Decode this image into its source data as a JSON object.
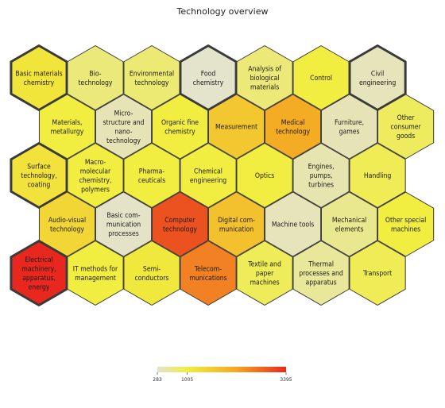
{
  "title": "Technology overview",
  "chart_data": {
    "type": "heatmap",
    "title": "Technology overview",
    "layout": "hexagonal grid",
    "color_scale": {
      "min": 283,
      "mid": 1005,
      "max": 3395,
      "tick_labels": [
        "283",
        "1005",
        "3395"
      ],
      "colors": [
        "#e3e2d2",
        "#f1ee40",
        "#f5a623",
        "#e8281e"
      ]
    },
    "cells": [
      {
        "label": [
          "Basic materials",
          "chemistry"
        ],
        "row": 0,
        "col": 0,
        "value": 1150,
        "highlight": true
      },
      {
        "label": [
          "Bio-",
          "technology"
        ],
        "row": 0,
        "col": 1,
        "value": 720,
        "highlight": false
      },
      {
        "label": [
          "Environmental",
          "technology"
        ],
        "row": 0,
        "col": 2,
        "value": 760,
        "highlight": false
      },
      {
        "label": [
          "Food",
          "chemistry"
        ],
        "row": 0,
        "col": 3,
        "value": 320,
        "highlight": true
      },
      {
        "label": [
          "Analysis of",
          "biological",
          "materials"
        ],
        "row": 0,
        "col": 4,
        "value": 730,
        "highlight": false
      },
      {
        "label": [
          "Control"
        ],
        "row": 0,
        "col": 5,
        "value": 1000,
        "highlight": false
      },
      {
        "label": [
          "Civil",
          "engineering"
        ],
        "row": 0,
        "col": 6,
        "value": 400,
        "highlight": true
      },
      {
        "label": [
          "Materials,",
          "metallurgy"
        ],
        "row": 1,
        "col": 0,
        "value": 1000,
        "highlight": false
      },
      {
        "label": [
          "Micro-",
          "structure and",
          "nano-",
          "technology"
        ],
        "row": 1,
        "col": 1,
        "value": 420,
        "highlight": false
      },
      {
        "label": [
          "Organic fine",
          "chemistry"
        ],
        "row": 1,
        "col": 2,
        "value": 1000,
        "highlight": false
      },
      {
        "label": [
          "Measurement"
        ],
        "row": 1,
        "col": 3,
        "value": 1650,
        "highlight": false
      },
      {
        "label": [
          "Medical",
          "technology"
        ],
        "row": 1,
        "col": 4,
        "value": 2100,
        "highlight": false
      },
      {
        "label": [
          "Furniture,",
          "games"
        ],
        "row": 1,
        "col": 5,
        "value": 420,
        "highlight": false
      },
      {
        "label": [
          "Other",
          "consumer",
          "goods"
        ],
        "row": 1,
        "col": 6,
        "value": 850,
        "highlight": false
      },
      {
        "label": [
          "Surface",
          "technology,",
          "coating"
        ],
        "row": 2,
        "col": 0,
        "value": 1200,
        "highlight": true
      },
      {
        "label": [
          "Macro-",
          "molecular",
          "chemistry,",
          "polymers"
        ],
        "row": 2,
        "col": 1,
        "value": 1000,
        "highlight": false
      },
      {
        "label": [
          "Pharma-",
          "ceuticals"
        ],
        "row": 2,
        "col": 2,
        "value": 1000,
        "highlight": false
      },
      {
        "label": [
          "Chemical",
          "engineering"
        ],
        "row": 2,
        "col": 3,
        "value": 1000,
        "highlight": false
      },
      {
        "label": [
          "Optics"
        ],
        "row": 2,
        "col": 4,
        "value": 1000,
        "highlight": false
      },
      {
        "label": [
          "Engines,",
          "pumps,",
          "turbines"
        ],
        "row": 2,
        "col": 5,
        "value": 450,
        "highlight": false
      },
      {
        "label": [
          "Handling"
        ],
        "row": 2,
        "col": 6,
        "value": 900,
        "highlight": false
      },
      {
        "label": [
          "Audio-visual",
          "technology"
        ],
        "row": 3,
        "col": 0,
        "value": 1400,
        "highlight": false
      },
      {
        "label": [
          "Basic com-",
          "munication",
          "processes"
        ],
        "row": 3,
        "col": 1,
        "value": 330,
        "highlight": false
      },
      {
        "label": [
          "Computer",
          "technology"
        ],
        "row": 3,
        "col": 2,
        "value": 3000,
        "highlight": false
      },
      {
        "label": [
          "Digital com-",
          "munication"
        ],
        "row": 3,
        "col": 3,
        "value": 1750,
        "highlight": false
      },
      {
        "label": [
          "Machine tools"
        ],
        "row": 3,
        "col": 4,
        "value": 400,
        "highlight": false
      },
      {
        "label": [
          "Mechanical",
          "elements"
        ],
        "row": 3,
        "col": 5,
        "value": 620,
        "highlight": false
      },
      {
        "label": [
          "Other special",
          "machines"
        ],
        "row": 3,
        "col": 6,
        "value": 1000,
        "highlight": false
      },
      {
        "label": [
          "Electrical",
          "machinery,",
          "apparatus,",
          "energy"
        ],
        "row": 4,
        "col": 0,
        "value": 3395,
        "highlight": true
      },
      {
        "label": [
          "IT methods for",
          "management"
        ],
        "row": 4,
        "col": 1,
        "value": 1000,
        "highlight": false
      },
      {
        "label": [
          "Semi-",
          "conductors"
        ],
        "row": 4,
        "col": 2,
        "value": 1100,
        "highlight": false
      },
      {
        "label": [
          "Telecom-",
          "munications"
        ],
        "row": 4,
        "col": 3,
        "value": 2550,
        "highlight": false
      },
      {
        "label": [
          "Textile and",
          "paper",
          "machines"
        ],
        "row": 4,
        "col": 4,
        "value": 880,
        "highlight": false
      },
      {
        "label": [
          "Thermal",
          "processes and",
          "apparatus"
        ],
        "row": 4,
        "col": 5,
        "value": 560,
        "highlight": false
      },
      {
        "label": [
          "Transport"
        ],
        "row": 4,
        "col": 6,
        "value": 900,
        "highlight": false
      }
    ]
  }
}
